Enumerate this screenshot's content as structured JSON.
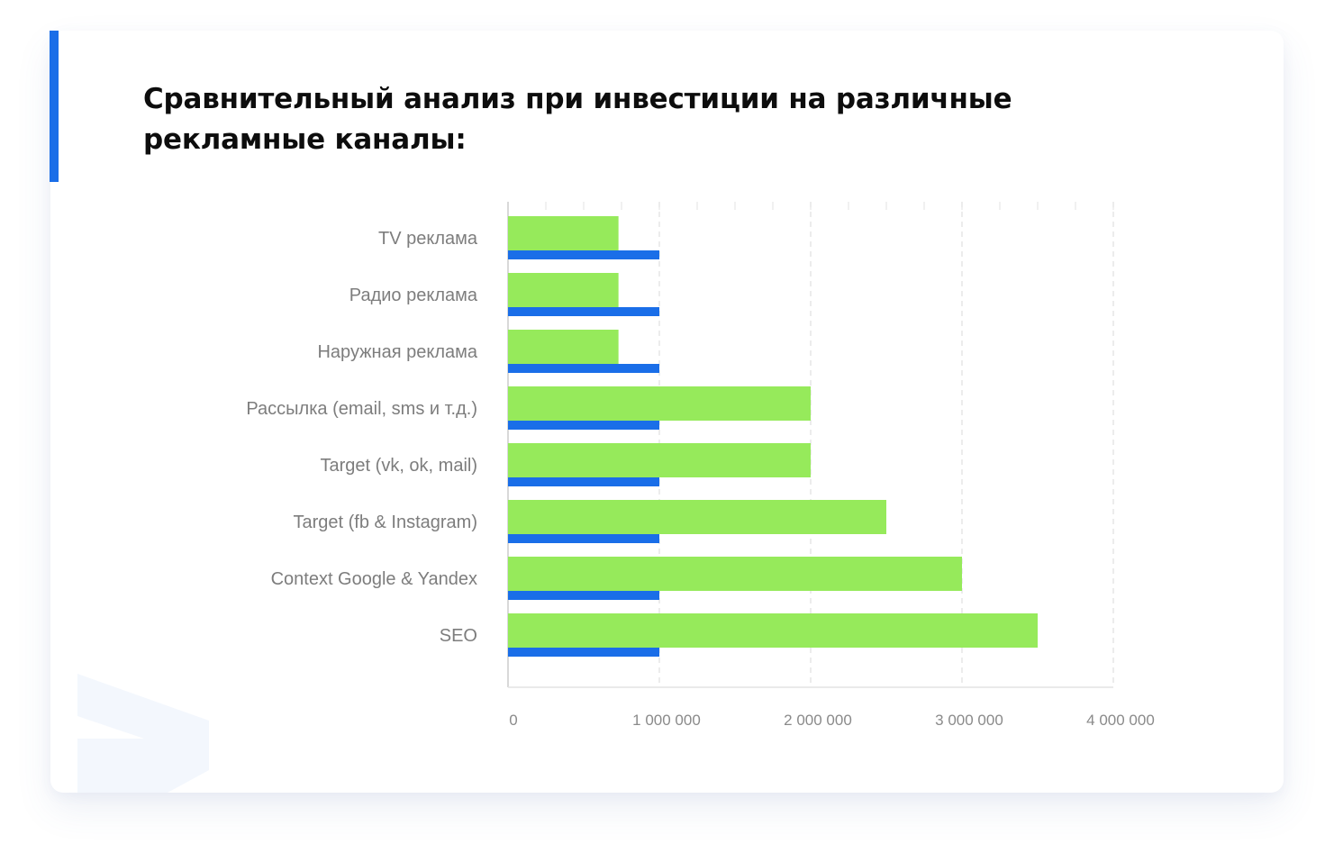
{
  "title": "Сравнительный анализ при инвестиции на различные рекламные каналы:",
  "colors": {
    "accent": "#1a6ee8",
    "green_series": "#96ea5b",
    "blue_series": "#1a6ee8"
  },
  "chart_data": {
    "type": "bar",
    "orientation": "horizontal",
    "title": "Сравнительный анализ при инвестиции на различные рекламные каналы:",
    "categories": [
      "TV реклама",
      "Радио реклама",
      "Наружная реклама",
      "Рассылка (email, sms и т.д.)",
      "Target (vk, ok, mail)",
      "Target (fb & Instagram)",
      "Context Google & Yandex",
      "SEO"
    ],
    "series": [
      {
        "color": "#96ea5b",
        "values": [
          730000,
          730000,
          730000,
          2000000,
          2000000,
          2500000,
          3000000,
          3500000
        ]
      },
      {
        "color": "#1a6ee8",
        "values": [
          1000000,
          1000000,
          1000000,
          1000000,
          1000000,
          1000000,
          1000000,
          1000000
        ]
      }
    ],
    "xlim": [
      0,
      4000000
    ],
    "x_ticks": [
      0,
      1000000,
      2000000,
      3000000,
      4000000
    ],
    "x_tick_labels": [
      "0",
      "1 000 000",
      "2 000 000",
      "3 000 000",
      "4 000 000"
    ],
    "xlabel": "",
    "ylabel": "",
    "grid": true,
    "legend": false
  }
}
